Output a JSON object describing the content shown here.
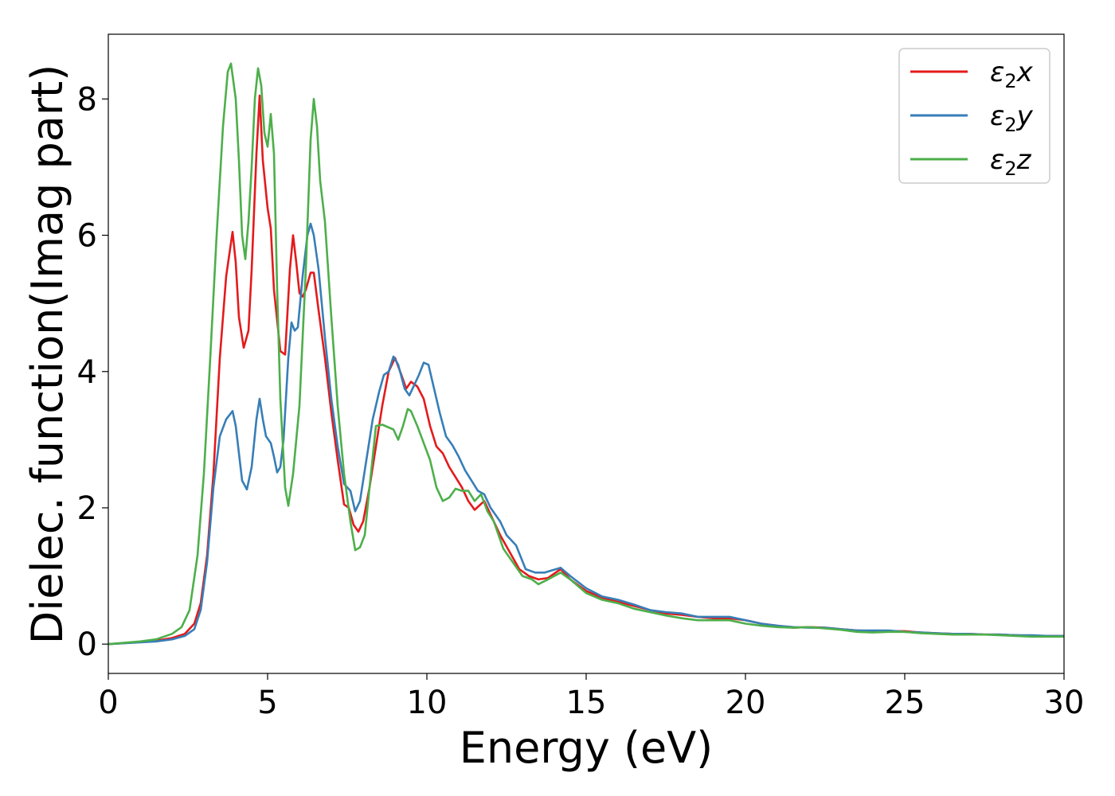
{
  "chart_data": {
    "type": "line",
    "xlabel": "Energy (eV)",
    "ylabel": "Dielec. function(Imag part)",
    "xlim": [
      0,
      30
    ],
    "ylim": [
      -0.43,
      8.95
    ],
    "xticks": [
      "0",
      "5",
      "10",
      "15",
      "20",
      "25",
      "30"
    ],
    "yticks": [
      "0",
      "2",
      "4",
      "6",
      "8"
    ],
    "grid": false,
    "legend_position": "top-right",
    "series": [
      {
        "name": "ε₂x",
        "legend_main": "ε",
        "legend_sub": "2",
        "legend_suffix": "x",
        "color": "#e41a1c",
        "points": [
          [
            0,
            0
          ],
          [
            1,
            0.03
          ],
          [
            1.5,
            0.05
          ],
          [
            2,
            0.09
          ],
          [
            2.4,
            0.15
          ],
          [
            2.7,
            0.3
          ],
          [
            2.9,
            0.6
          ],
          [
            3.1,
            1.3
          ],
          [
            3.3,
            2.5
          ],
          [
            3.5,
            4.2
          ],
          [
            3.7,
            5.4
          ],
          [
            3.9,
            6.05
          ],
          [
            4.0,
            5.6
          ],
          [
            4.1,
            4.8
          ],
          [
            4.25,
            4.35
          ],
          [
            4.4,
            4.6
          ],
          [
            4.5,
            5.5
          ],
          [
            4.65,
            7.2
          ],
          [
            4.75,
            8.05
          ],
          [
            4.85,
            7.1
          ],
          [
            5.0,
            6.4
          ],
          [
            5.1,
            6.1
          ],
          [
            5.2,
            5.2
          ],
          [
            5.4,
            4.3
          ],
          [
            5.55,
            4.25
          ],
          [
            5.7,
            5.5
          ],
          [
            5.8,
            6.0
          ],
          [
            5.9,
            5.6
          ],
          [
            6.0,
            5.15
          ],
          [
            6.1,
            5.1
          ],
          [
            6.2,
            5.2
          ],
          [
            6.35,
            5.45
          ],
          [
            6.45,
            5.45
          ],
          [
            6.6,
            4.9
          ],
          [
            6.8,
            4.2
          ],
          [
            7.0,
            3.4
          ],
          [
            7.2,
            2.7
          ],
          [
            7.4,
            2.05
          ],
          [
            7.55,
            2.0
          ],
          [
            7.7,
            1.75
          ],
          [
            7.85,
            1.65
          ],
          [
            8.0,
            1.8
          ],
          [
            8.2,
            2.3
          ],
          [
            8.4,
            2.9
          ],
          [
            8.6,
            3.5
          ],
          [
            8.8,
            4.0
          ],
          [
            9.0,
            4.2
          ],
          [
            9.2,
            3.95
          ],
          [
            9.35,
            3.75
          ],
          [
            9.5,
            3.85
          ],
          [
            9.7,
            3.78
          ],
          [
            9.9,
            3.6
          ],
          [
            10.1,
            3.2
          ],
          [
            10.3,
            2.9
          ],
          [
            10.5,
            2.8
          ],
          [
            10.7,
            2.6
          ],
          [
            10.9,
            2.45
          ],
          [
            11.1,
            2.3
          ],
          [
            11.3,
            2.1
          ],
          [
            11.5,
            1.97
          ],
          [
            11.8,
            2.1
          ],
          [
            12.0,
            1.9
          ],
          [
            12.3,
            1.6
          ],
          [
            12.6,
            1.35
          ],
          [
            12.9,
            1.1
          ],
          [
            13.2,
            1.0
          ],
          [
            13.5,
            0.95
          ],
          [
            13.8,
            0.97
          ],
          [
            14.2,
            1.1
          ],
          [
            14.5,
            0.95
          ],
          [
            15.0,
            0.78
          ],
          [
            15.5,
            0.68
          ],
          [
            16.0,
            0.62
          ],
          [
            16.5,
            0.56
          ],
          [
            17.0,
            0.5
          ],
          [
            17.5,
            0.45
          ],
          [
            18.0,
            0.43
          ],
          [
            18.5,
            0.4
          ],
          [
            19.0,
            0.38
          ],
          [
            19.5,
            0.38
          ],
          [
            20.0,
            0.35
          ],
          [
            20.5,
            0.3
          ],
          [
            21.0,
            0.27
          ],
          [
            21.5,
            0.24
          ],
          [
            22.0,
            0.25
          ],
          [
            22.5,
            0.24
          ],
          [
            23.0,
            0.22
          ],
          [
            23.5,
            0.2
          ],
          [
            24.0,
            0.19
          ],
          [
            24.5,
            0.19
          ],
          [
            25.0,
            0.19
          ],
          [
            25.5,
            0.17
          ],
          [
            26.0,
            0.16
          ],
          [
            26.5,
            0.15
          ],
          [
            27.0,
            0.15
          ],
          [
            27.5,
            0.14
          ],
          [
            28.0,
            0.14
          ],
          [
            28.5,
            0.13
          ],
          [
            29.0,
            0.12
          ],
          [
            29.5,
            0.12
          ],
          [
            30.0,
            0.12
          ]
        ]
      },
      {
        "name": "ε₂y",
        "legend_main": "ε",
        "legend_sub": "2",
        "legend_suffix": "y",
        "color": "#377eb8",
        "points": [
          [
            0,
            0
          ],
          [
            1,
            0.025
          ],
          [
            1.5,
            0.04
          ],
          [
            2,
            0.07
          ],
          [
            2.4,
            0.12
          ],
          [
            2.7,
            0.22
          ],
          [
            2.9,
            0.5
          ],
          [
            3.1,
            1.2
          ],
          [
            3.3,
            2.3
          ],
          [
            3.5,
            3.05
          ],
          [
            3.7,
            3.3
          ],
          [
            3.9,
            3.42
          ],
          [
            4.0,
            3.2
          ],
          [
            4.2,
            2.4
          ],
          [
            4.35,
            2.27
          ],
          [
            4.5,
            2.6
          ],
          [
            4.65,
            3.3
          ],
          [
            4.75,
            3.6
          ],
          [
            4.85,
            3.3
          ],
          [
            4.95,
            3.05
          ],
          [
            5.1,
            2.95
          ],
          [
            5.2,
            2.75
          ],
          [
            5.3,
            2.52
          ],
          [
            5.4,
            2.6
          ],
          [
            5.5,
            3.0
          ],
          [
            5.65,
            4.2
          ],
          [
            5.75,
            4.72
          ],
          [
            5.85,
            4.6
          ],
          [
            5.95,
            4.65
          ],
          [
            6.1,
            5.4
          ],
          [
            6.25,
            6.0
          ],
          [
            6.35,
            6.17
          ],
          [
            6.45,
            6.0
          ],
          [
            6.6,
            5.5
          ],
          [
            6.8,
            4.5
          ],
          [
            7.0,
            3.6
          ],
          [
            7.2,
            2.9
          ],
          [
            7.4,
            2.35
          ],
          [
            7.6,
            2.25
          ],
          [
            7.75,
            1.95
          ],
          [
            7.9,
            2.1
          ],
          [
            8.1,
            2.7
          ],
          [
            8.3,
            3.3
          ],
          [
            8.5,
            3.7
          ],
          [
            8.65,
            3.95
          ],
          [
            8.8,
            4.0
          ],
          [
            8.95,
            4.22
          ],
          [
            9.1,
            4.1
          ],
          [
            9.3,
            3.75
          ],
          [
            9.45,
            3.65
          ],
          [
            9.6,
            3.8
          ],
          [
            9.75,
            3.95
          ],
          [
            9.9,
            4.13
          ],
          [
            10.05,
            4.1
          ],
          [
            10.2,
            3.8
          ],
          [
            10.4,
            3.4
          ],
          [
            10.6,
            3.05
          ],
          [
            10.8,
            2.92
          ],
          [
            11.0,
            2.75
          ],
          [
            11.2,
            2.55
          ],
          [
            11.4,
            2.4
          ],
          [
            11.6,
            2.25
          ],
          [
            11.8,
            2.2
          ],
          [
            12.0,
            2.0
          ],
          [
            12.3,
            1.8
          ],
          [
            12.5,
            1.6
          ],
          [
            12.8,
            1.45
          ],
          [
            13.1,
            1.1
          ],
          [
            13.4,
            1.05
          ],
          [
            13.7,
            1.05
          ],
          [
            14.2,
            1.12
          ],
          [
            14.5,
            1.0
          ],
          [
            15.0,
            0.82
          ],
          [
            15.5,
            0.7
          ],
          [
            16.0,
            0.65
          ],
          [
            16.5,
            0.58
          ],
          [
            17.0,
            0.5
          ],
          [
            17.5,
            0.47
          ],
          [
            18.0,
            0.45
          ],
          [
            18.5,
            0.4
          ],
          [
            19.0,
            0.4
          ],
          [
            19.5,
            0.4
          ],
          [
            20.0,
            0.35
          ],
          [
            20.5,
            0.3
          ],
          [
            21.0,
            0.27
          ],
          [
            21.5,
            0.25
          ],
          [
            22.0,
            0.24
          ],
          [
            22.5,
            0.24
          ],
          [
            23.0,
            0.22
          ],
          [
            23.5,
            0.2
          ],
          [
            24.0,
            0.2
          ],
          [
            24.5,
            0.2
          ],
          [
            25.0,
            0.18
          ],
          [
            25.5,
            0.17
          ],
          [
            26.0,
            0.16
          ],
          [
            26.5,
            0.15
          ],
          [
            27.0,
            0.15
          ],
          [
            27.5,
            0.14
          ],
          [
            28.0,
            0.14
          ],
          [
            28.5,
            0.13
          ],
          [
            29.0,
            0.13
          ],
          [
            29.5,
            0.12
          ],
          [
            30.0,
            0.12
          ]
        ]
      },
      {
        "name": "ε₂z",
        "legend_main": "ε",
        "legend_sub": "2",
        "legend_suffix": "z",
        "color": "#4daf4a",
        "points": [
          [
            0,
            0
          ],
          [
            1,
            0.04
          ],
          [
            1.5,
            0.07
          ],
          [
            2,
            0.15
          ],
          [
            2.3,
            0.25
          ],
          [
            2.55,
            0.5
          ],
          [
            2.8,
            1.3
          ],
          [
            3.0,
            2.5
          ],
          [
            3.2,
            4.2
          ],
          [
            3.4,
            6.0
          ],
          [
            3.6,
            7.6
          ],
          [
            3.75,
            8.4
          ],
          [
            3.85,
            8.52
          ],
          [
            4.0,
            8.0
          ],
          [
            4.1,
            7.1
          ],
          [
            4.2,
            6.0
          ],
          [
            4.3,
            5.65
          ],
          [
            4.4,
            6.2
          ],
          [
            4.5,
            7.0
          ],
          [
            4.6,
            8.0
          ],
          [
            4.7,
            8.45
          ],
          [
            4.8,
            8.2
          ],
          [
            4.9,
            7.5
          ],
          [
            5.0,
            7.3
          ],
          [
            5.1,
            7.78
          ],
          [
            5.2,
            7.2
          ],
          [
            5.3,
            5.2
          ],
          [
            5.4,
            3.6
          ],
          [
            5.55,
            2.3
          ],
          [
            5.65,
            2.03
          ],
          [
            5.8,
            2.5
          ],
          [
            6.0,
            3.5
          ],
          [
            6.2,
            5.5
          ],
          [
            6.35,
            7.4
          ],
          [
            6.45,
            8.0
          ],
          [
            6.55,
            7.6
          ],
          [
            6.65,
            6.8
          ],
          [
            6.8,
            6.2
          ],
          [
            7.0,
            4.8
          ],
          [
            7.2,
            3.5
          ],
          [
            7.4,
            2.5
          ],
          [
            7.6,
            1.8
          ],
          [
            7.75,
            1.38
          ],
          [
            7.9,
            1.42
          ],
          [
            8.05,
            1.6
          ],
          [
            8.2,
            2.3
          ],
          [
            8.4,
            3.2
          ],
          [
            8.6,
            3.22
          ],
          [
            8.8,
            3.18
          ],
          [
            8.95,
            3.15
          ],
          [
            9.1,
            3.0
          ],
          [
            9.25,
            3.2
          ],
          [
            9.4,
            3.45
          ],
          [
            9.5,
            3.42
          ],
          [
            9.7,
            3.2
          ],
          [
            9.9,
            2.95
          ],
          [
            10.1,
            2.7
          ],
          [
            10.3,
            2.3
          ],
          [
            10.5,
            2.1
          ],
          [
            10.7,
            2.15
          ],
          [
            10.9,
            2.28
          ],
          [
            11.1,
            2.25
          ],
          [
            11.3,
            2.25
          ],
          [
            11.5,
            2.1
          ],
          [
            11.7,
            2.2
          ],
          [
            11.9,
            1.95
          ],
          [
            12.1,
            1.8
          ],
          [
            12.4,
            1.4
          ],
          [
            12.7,
            1.2
          ],
          [
            13.0,
            1.0
          ],
          [
            13.3,
            0.95
          ],
          [
            13.5,
            0.88
          ],
          [
            13.8,
            0.95
          ],
          [
            14.2,
            1.05
          ],
          [
            14.5,
            0.95
          ],
          [
            15.0,
            0.75
          ],
          [
            15.5,
            0.65
          ],
          [
            16.0,
            0.6
          ],
          [
            16.5,
            0.52
          ],
          [
            17.0,
            0.47
          ],
          [
            17.5,
            0.42
          ],
          [
            18.0,
            0.38
          ],
          [
            18.5,
            0.35
          ],
          [
            19.0,
            0.35
          ],
          [
            19.5,
            0.35
          ],
          [
            20.0,
            0.3
          ],
          [
            20.5,
            0.27
          ],
          [
            21.0,
            0.25
          ],
          [
            21.5,
            0.24
          ],
          [
            22.0,
            0.25
          ],
          [
            22.5,
            0.23
          ],
          [
            23.0,
            0.21
          ],
          [
            23.5,
            0.18
          ],
          [
            24.0,
            0.17
          ],
          [
            24.5,
            0.18
          ],
          [
            25.0,
            0.18
          ],
          [
            25.5,
            0.16
          ],
          [
            26.0,
            0.15
          ],
          [
            26.5,
            0.14
          ],
          [
            27.0,
            0.14
          ],
          [
            27.5,
            0.14
          ],
          [
            28.0,
            0.13
          ],
          [
            28.5,
            0.12
          ],
          [
            29.0,
            0.11
          ],
          [
            29.5,
            0.11
          ],
          [
            30.0,
            0.11
          ]
        ]
      }
    ]
  }
}
